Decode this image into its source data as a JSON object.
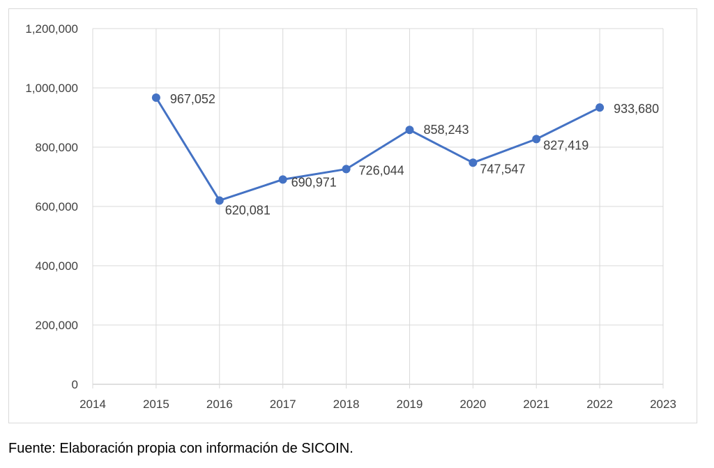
{
  "chart_data": {
    "type": "line",
    "title": "",
    "xlabel": "",
    "ylabel": "",
    "x": [
      2015,
      2016,
      2017,
      2018,
      2019,
      2020,
      2021,
      2022
    ],
    "series": [
      {
        "name": "",
        "values": [
          967052,
          620081,
          690971,
          726044,
          858243,
          747547,
          827419,
          933680
        ],
        "labels": [
          "967,052",
          "620,081",
          "690,971",
          "726,044",
          "858,243",
          "747,547",
          "827,419",
          "933,680"
        ]
      }
    ],
    "xlim": [
      2014,
      2023
    ],
    "ylim": [
      0,
      1200000
    ],
    "xticks": [
      "2014",
      "2015",
      "2016",
      "2017",
      "2018",
      "2019",
      "2020",
      "2021",
      "2022",
      "2023"
    ],
    "yticks": [
      "0",
      "200,000",
      "400,000",
      "600,000",
      "800,000",
      "1,000,000",
      "1,200,000"
    ],
    "grid": true,
    "legend": "none",
    "line_color": "#4472C4"
  },
  "caption": "Fuente: Elaboración propia con información de SICOIN."
}
